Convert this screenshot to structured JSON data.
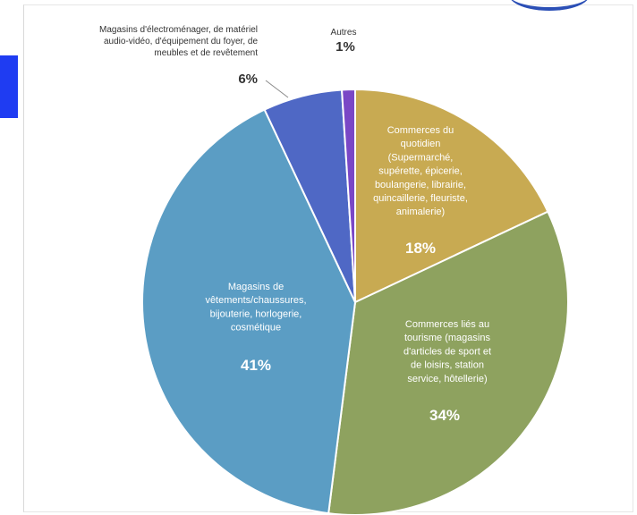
{
  "chart_data": {
    "type": "pie",
    "title": "",
    "start_angle_deg": 0,
    "direction": "clockwise",
    "slices": [
      {
        "value": 18,
        "pct_label": "18%",
        "label_lines": [
          "Commerces du",
          "quotidien",
          "(Supermarché,",
          "supérette, épicerie,",
          "boulangerie, librairie,",
          "quincaillerie, fleuriste,",
          "animalerie)"
        ],
        "color": "#c8aa52",
        "text_color": "#ffffff",
        "label_inside": true
      },
      {
        "value": 34,
        "pct_label": "34%",
        "label_lines": [
          "Commerces liés au",
          "tourisme (magasins",
          "d'articles de sport et",
          "de loisirs, station",
          "service, hôtellerie)"
        ],
        "color": "#8ea25f",
        "text_color": "#ffffff",
        "label_inside": true
      },
      {
        "value": 41,
        "pct_label": "41%",
        "label_lines": [
          "Magasins de",
          "vêtements/chaussures,",
          "bijouterie, horlogerie,",
          "cosmétique"
        ],
        "color": "#5b9dc4",
        "text_color": "#ffffff",
        "label_inside": true
      },
      {
        "value": 6,
        "pct_label": "6%",
        "label_lines": [
          "Magasins d'électroménager, de matériel",
          "audio-vidéo, d'équipement du foyer, de",
          "meubles et de revêtement"
        ],
        "color": "#4f68c5",
        "text_color": "#333333",
        "label_inside": false
      },
      {
        "value": 1,
        "pct_label": "1%",
        "label_lines": [
          "Autres"
        ],
        "color": "#7a47c6",
        "text_color": "#333333",
        "label_inside": false
      }
    ]
  }
}
